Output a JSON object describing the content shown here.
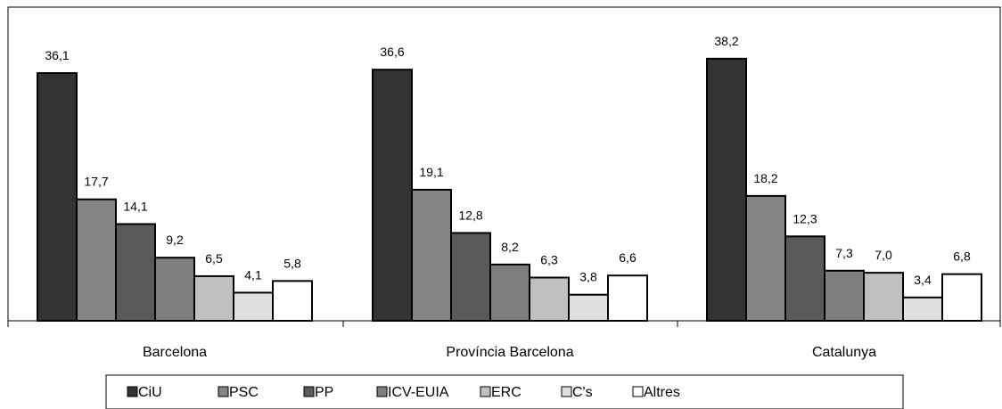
{
  "chart_data": {
    "type": "bar",
    "categories": [
      "Barcelona",
      "Província Barcelona",
      "Catalunya"
    ],
    "series": [
      {
        "name": "CiU",
        "color": "#333333",
        "values": [
          36.1,
          36.6,
          38.2
        ],
        "labels": [
          "36,1",
          "36,6",
          "38,2"
        ]
      },
      {
        "name": "PSC",
        "color": "#858585",
        "values": [
          17.7,
          19.1,
          18.2
        ],
        "labels": [
          "17,7",
          "19,1",
          "18,2"
        ]
      },
      {
        "name": "PP",
        "color": "#5a5a5a",
        "values": [
          14.1,
          12.8,
          12.3
        ],
        "labels": [
          "14,1",
          "12,8",
          "12,3"
        ]
      },
      {
        "name": "ICV-EUIA",
        "color": "#7e7e7e",
        "values": [
          9.2,
          8.2,
          7.3
        ],
        "labels": [
          "9,2",
          "8,2",
          "7,3"
        ]
      },
      {
        "name": "ERC",
        "color": "#c0c0c0",
        "values": [
          6.5,
          6.3,
          7.0
        ],
        "labels": [
          "6,5",
          "6,3",
          "7,0"
        ]
      },
      {
        "name": "C's",
        "color": "#e0e0e0",
        "values": [
          4.1,
          3.8,
          3.4
        ],
        "labels": [
          "4,1",
          "3,8",
          "3,4"
        ]
      },
      {
        "name": "Altres",
        "color": "#ffffff",
        "values": [
          5.8,
          6.6,
          6.8
        ],
        "labels": [
          "5,8",
          "6,6",
          "6,8"
        ]
      }
    ],
    "ylim": [
      0,
      40
    ],
    "grid": false,
    "legend_position": "bottom"
  }
}
